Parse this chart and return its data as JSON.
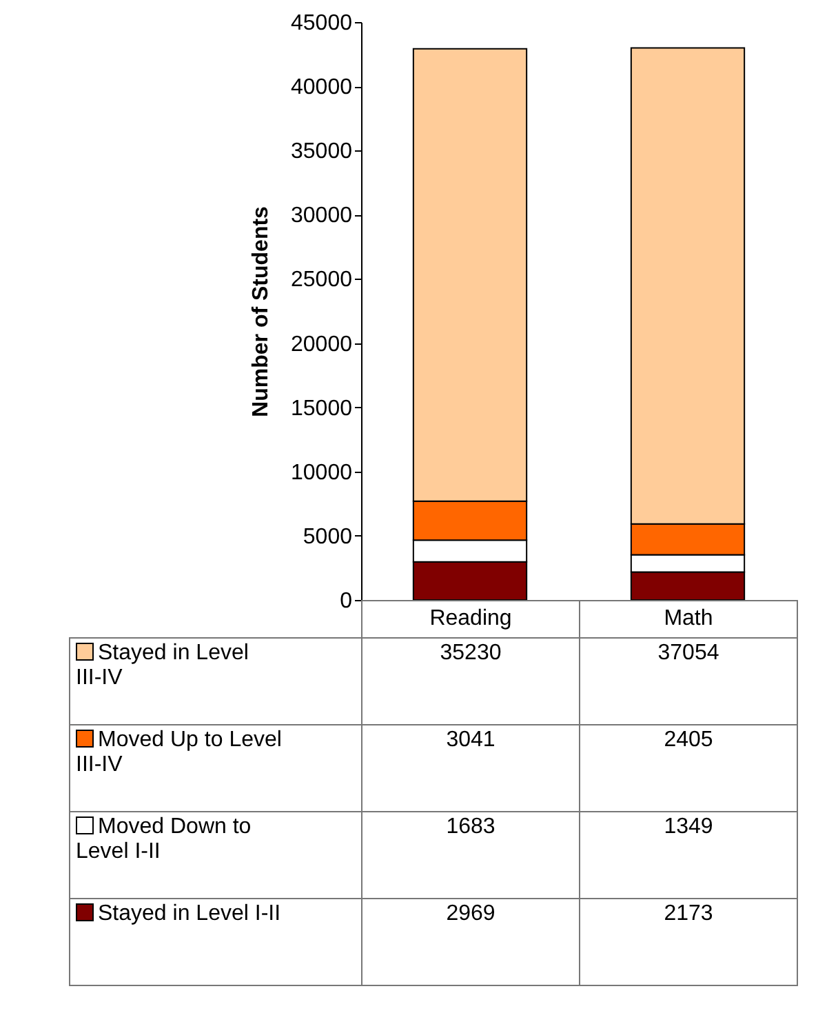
{
  "chart_data": {
    "type": "bar",
    "stacked": true,
    "ylabel": "Number of Students",
    "categories": [
      "Reading",
      "Math"
    ],
    "series": [
      {
        "name": "Stayed in Level I-II",
        "color": "#800000",
        "values": [
          2969,
          2173
        ]
      },
      {
        "name": "Moved Down to Level I-II",
        "color": "#ffffff",
        "values": [
          1683,
          1349
        ]
      },
      {
        "name": "Moved Up to Level III-IV",
        "color": "#ff6600",
        "values": [
          3041,
          2405
        ]
      },
      {
        "name": "Stayed in Level III-IV",
        "color": "#ffcc99",
        "values": [
          35230,
          37054
        ]
      }
    ],
    "ylim": [
      0,
      45000
    ],
    "yticks": [
      0,
      5000,
      10000,
      15000,
      20000,
      25000,
      30000,
      35000,
      40000,
      45000
    ],
    "grid": false,
    "legend": "bottom",
    "data_labels": true
  }
}
